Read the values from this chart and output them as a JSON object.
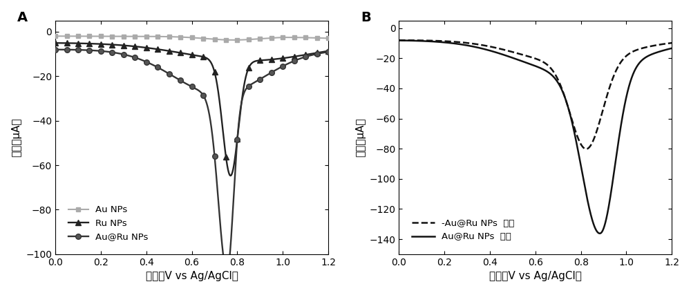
{
  "panel_A": {
    "label": "A",
    "xlim": [
      0.0,
      1.2
    ],
    "ylim": [
      -100,
      5
    ],
    "yticks": [
      0,
      -20,
      -40,
      -60,
      -80,
      -100
    ],
    "xticks": [
      0.0,
      0.2,
      0.4,
      0.6,
      0.8,
      1.0,
      1.2
    ],
    "xlabel": "电势（V vs Ag/AgCl）",
    "ylabel": "电流（μA）"
  },
  "panel_B": {
    "label": "B",
    "xlim": [
      0.0,
      1.2
    ],
    "ylim": [
      -150,
      5
    ],
    "yticks": [
      0,
      -20,
      -40,
      -60,
      -80,
      -100,
      -120,
      -140
    ],
    "xticks": [
      0.0,
      0.2,
      0.4,
      0.6,
      0.8,
      1.0,
      1.2
    ],
    "xlabel": "电势（V vs Ag/AgCl）",
    "ylabel": "电流（μA）"
  },
  "legend_A": [
    {
      "label": "Au NPs",
      "color": "#aaaaaa",
      "marker": "s",
      "ms": 5
    },
    {
      "label": "Ru NPs",
      "color": "#222222",
      "marker": "^",
      "ms": 6
    },
    {
      "label": "Au@Ru NPs",
      "color": "#444444",
      "marker": "o",
      "ms": 6
    }
  ],
  "legend_B": [
    {
      "label": "-Au@Ru NPs",
      "label2": "黑暗",
      "linestyle": "--"
    },
    {
      "label": "Au@Ru NPs",
      "label2": "光照",
      "linestyle": "-"
    }
  ]
}
